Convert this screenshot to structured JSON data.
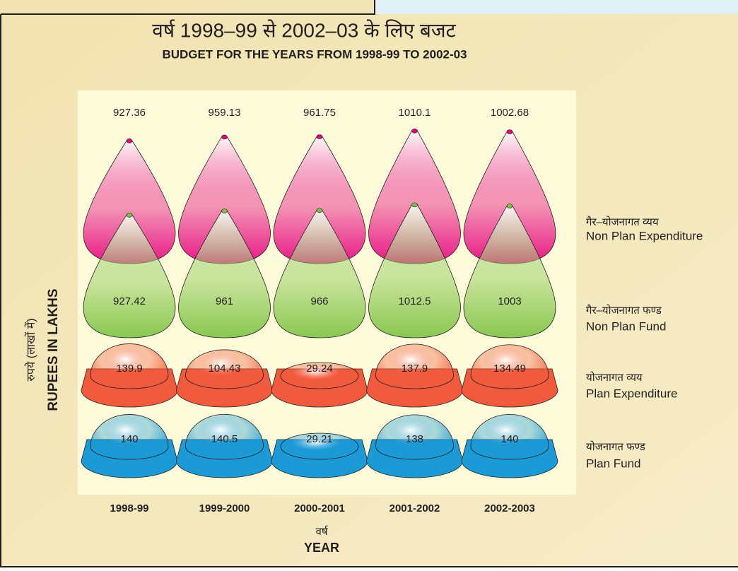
{
  "chart_data": {
    "type": "pictorial",
    "title": "वर्ष 1998–99 से 2002–03 के लिए बजट",
    "subtitle": "BUDGET FOR THE YEARS FROM 1998-99 TO 2002-03",
    "y_label_hindi": "रुपये (लाखों में)",
    "y_label": "RUPEES IN LAKHS",
    "x_label_hindi": "वर्ष",
    "x_label": "YEAR",
    "categories": [
      "1998-99",
      "1999-2000",
      "2000-2001",
      "2001-2002",
      "2002-2003"
    ],
    "series": [
      {
        "name_hindi": "गैर–योजनागत व्यय",
        "name": "Non Plan Expenditure",
        "color": "#e6007e",
        "marker": "cone",
        "values": [
          927.36,
          959.13,
          961.75,
          1010.1,
          1002.68
        ]
      },
      {
        "name_hindi": "गैर–योजनागत फण्ड",
        "name": "Non Plan Fund",
        "color": "#7dc242",
        "marker": "cone",
        "values": [
          927.42,
          961,
          966,
          1012.5,
          1003
        ]
      },
      {
        "name_hindi": "योजनागत व्यय",
        "name": "Plan Expenditure",
        "color": "#f15a3c",
        "marker": "dome",
        "values": [
          139.9,
          104.43,
          29.24,
          137.9,
          134.49
        ]
      },
      {
        "name_hindi": "योजनागत फण्ड",
        "name": "Plan Fund",
        "color": "#1b9ad6",
        "marker": "dome",
        "values": [
          140,
          140.5,
          29.21,
          138,
          140
        ]
      }
    ]
  }
}
